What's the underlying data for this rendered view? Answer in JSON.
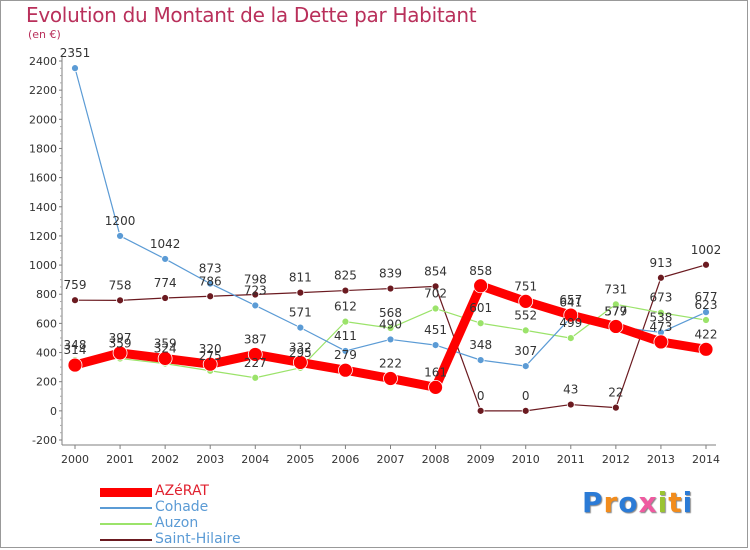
{
  "title": "Evolution du Montant de la Dette par Habitant",
  "subtitle": "(en €)",
  "logo": {
    "text": "Proxiti",
    "colors": [
      "#2b7bd6",
      "#f28c1c",
      "#2b7bd6",
      "#ef5aa0",
      "#9ac432",
      "#f28c1c",
      "#2b7bd6"
    ]
  },
  "chart_data": {
    "type": "line",
    "x": [
      2000,
      2001,
      2002,
      2003,
      2004,
      2005,
      2006,
      2007,
      2008,
      2009,
      2010,
      2011,
      2012,
      2013,
      2014
    ],
    "ylim": [
      -200,
      2400
    ],
    "yticks": [
      -200,
      0,
      200,
      400,
      600,
      800,
      1000,
      1200,
      1400,
      1600,
      1800,
      2000,
      2200,
      2400
    ],
    "grid": false,
    "legend_position": "bottom-left",
    "series": [
      {
        "name": "Saint-Hilaire",
        "color": "#6b1a20",
        "width": 1.2,
        "marker": 3.5,
        "values": [
          759,
          758,
          774,
          786,
          798,
          811,
          825,
          839,
          854,
          0,
          0,
          43,
          22,
          913,
          1002
        ],
        "labels": [
          "759",
          "758",
          "774",
          "786",
          "798",
          "811",
          "825",
          "839",
          "854",
          "0",
          "0",
          "43",
          "22",
          "913",
          "1002"
        ]
      },
      {
        "name": "Auzon",
        "color": "#9be36a",
        "width": 1.2,
        "marker": 3.5,
        "values": [
          348,
          359,
          324,
          275,
          227,
          295,
          612,
          568,
          702,
          601,
          552,
          499,
          731,
          673,
          623
        ],
        "labels": [
          "348",
          "359",
          "324",
          "275",
          "227",
          "295",
          "612",
          "568",
          "702",
          "601",
          "552",
          "499",
          "731",
          "673",
          "623"
        ]
      },
      {
        "name": "Cohade",
        "color": "#5b9bd5",
        "width": 1.2,
        "marker": 3.5,
        "values": [
          2351,
          1200,
          1042,
          873,
          723,
          571,
          411,
          490,
          451,
          348,
          307,
          641,
          577,
          538,
          677
        ],
        "labels": [
          "2351",
          "1200",
          "1042",
          "873",
          "723",
          "571",
          "411",
          "490",
          "451",
          "348",
          "307",
          "641",
          "577",
          "538",
          "677"
        ]
      },
      {
        "name": "AZéRAT",
        "color": "#ff0000",
        "width": 9,
        "marker": 7,
        "values": [
          314,
          397,
          359,
          320,
          387,
          332,
          279,
          222,
          161,
          858,
          751,
          657,
          579,
          473,
          422
        ],
        "labels": [
          "314",
          "397",
          "359",
          "320",
          "387",
          "332",
          "279",
          "222",
          "161",
          "858",
          "751",
          "657",
          "579",
          "473",
          "422"
        ]
      }
    ],
    "legend": [
      {
        "name": "AZéRAT",
        "color": "#ff0000",
        "thickness": 9
      },
      {
        "name": "Cohade",
        "color": "#5b9bd5",
        "thickness": 2
      },
      {
        "name": "Auzon",
        "color": "#9be36a",
        "thickness": 2
      },
      {
        "name": "Saint-Hilaire",
        "color": "#6b1a20",
        "thickness": 2
      }
    ]
  }
}
